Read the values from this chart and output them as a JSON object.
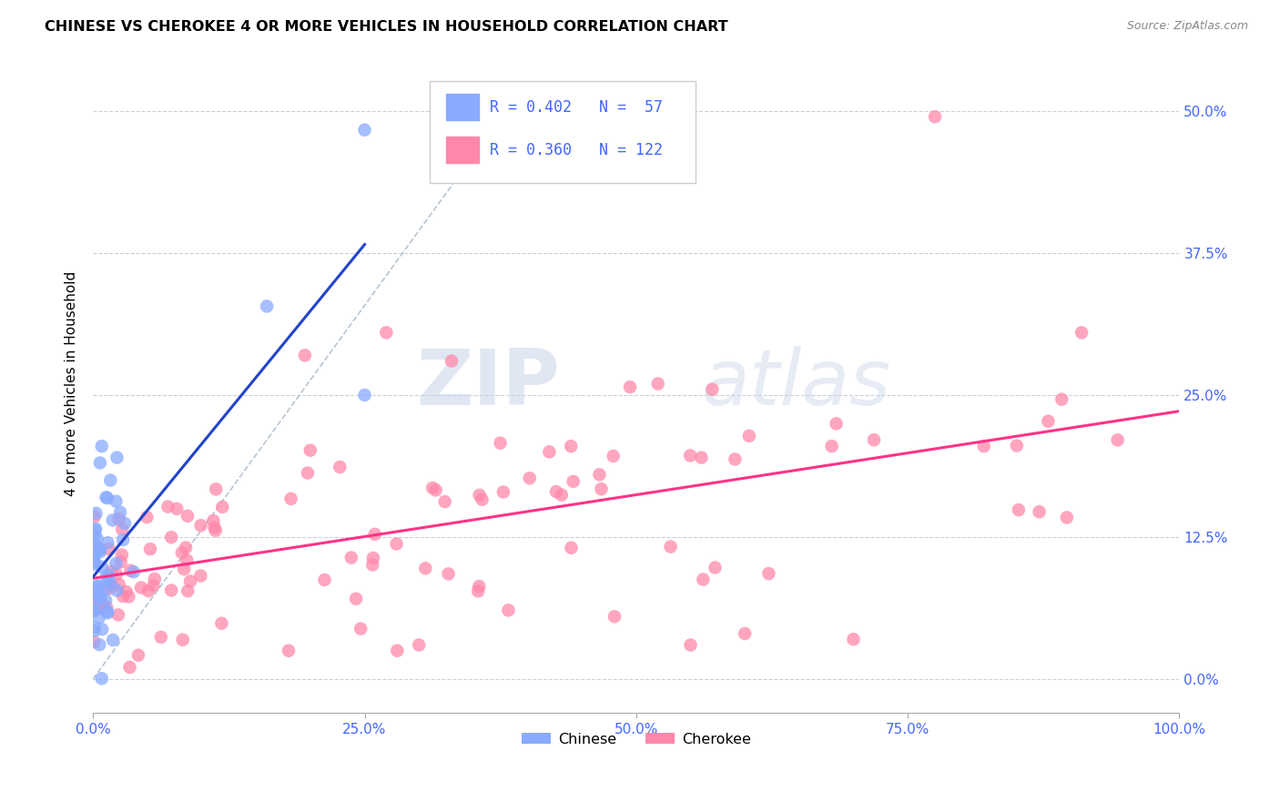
{
  "title": "CHINESE VS CHEROKEE 4 OR MORE VEHICLES IN HOUSEHOLD CORRELATION CHART",
  "source": "Source: ZipAtlas.com",
  "ylabel": "4 or more Vehicles in Household",
  "watermark_zip": "ZIP",
  "watermark_atlas": "atlas",
  "xlim": [
    0,
    1.0
  ],
  "ylim": [
    -0.03,
    0.55
  ],
  "xticks": [
    0.0,
    0.25,
    0.5,
    0.75,
    1.0
  ],
  "xticklabels": [
    "0.0%",
    "25.0%",
    "50.0%",
    "75.0%",
    "100.0%"
  ],
  "ytick_vals": [
    0.0,
    0.125,
    0.25,
    0.375,
    0.5
  ],
  "yticklabels": [
    "0.0%",
    "12.5%",
    "25.0%",
    "37.5%",
    "50.0%"
  ],
  "chinese_color": "#88aaff",
  "cherokee_color": "#ff88aa",
  "chinese_line_color": "#2244cc",
  "cherokee_line_color": "#ff3388",
  "tick_color": "#4466ff",
  "chinese_R": 0.402,
  "chinese_N": 57,
  "cherokee_R": 0.36,
  "cherokee_N": 122,
  "legend_color": "#4466ff",
  "grid_color": "#ccccdd",
  "ref_line_color": "#aabbcc",
  "title_fontsize": 11.5,
  "source_fontsize": 9,
  "tick_fontsize": 11,
  "ylabel_fontsize": 11
}
